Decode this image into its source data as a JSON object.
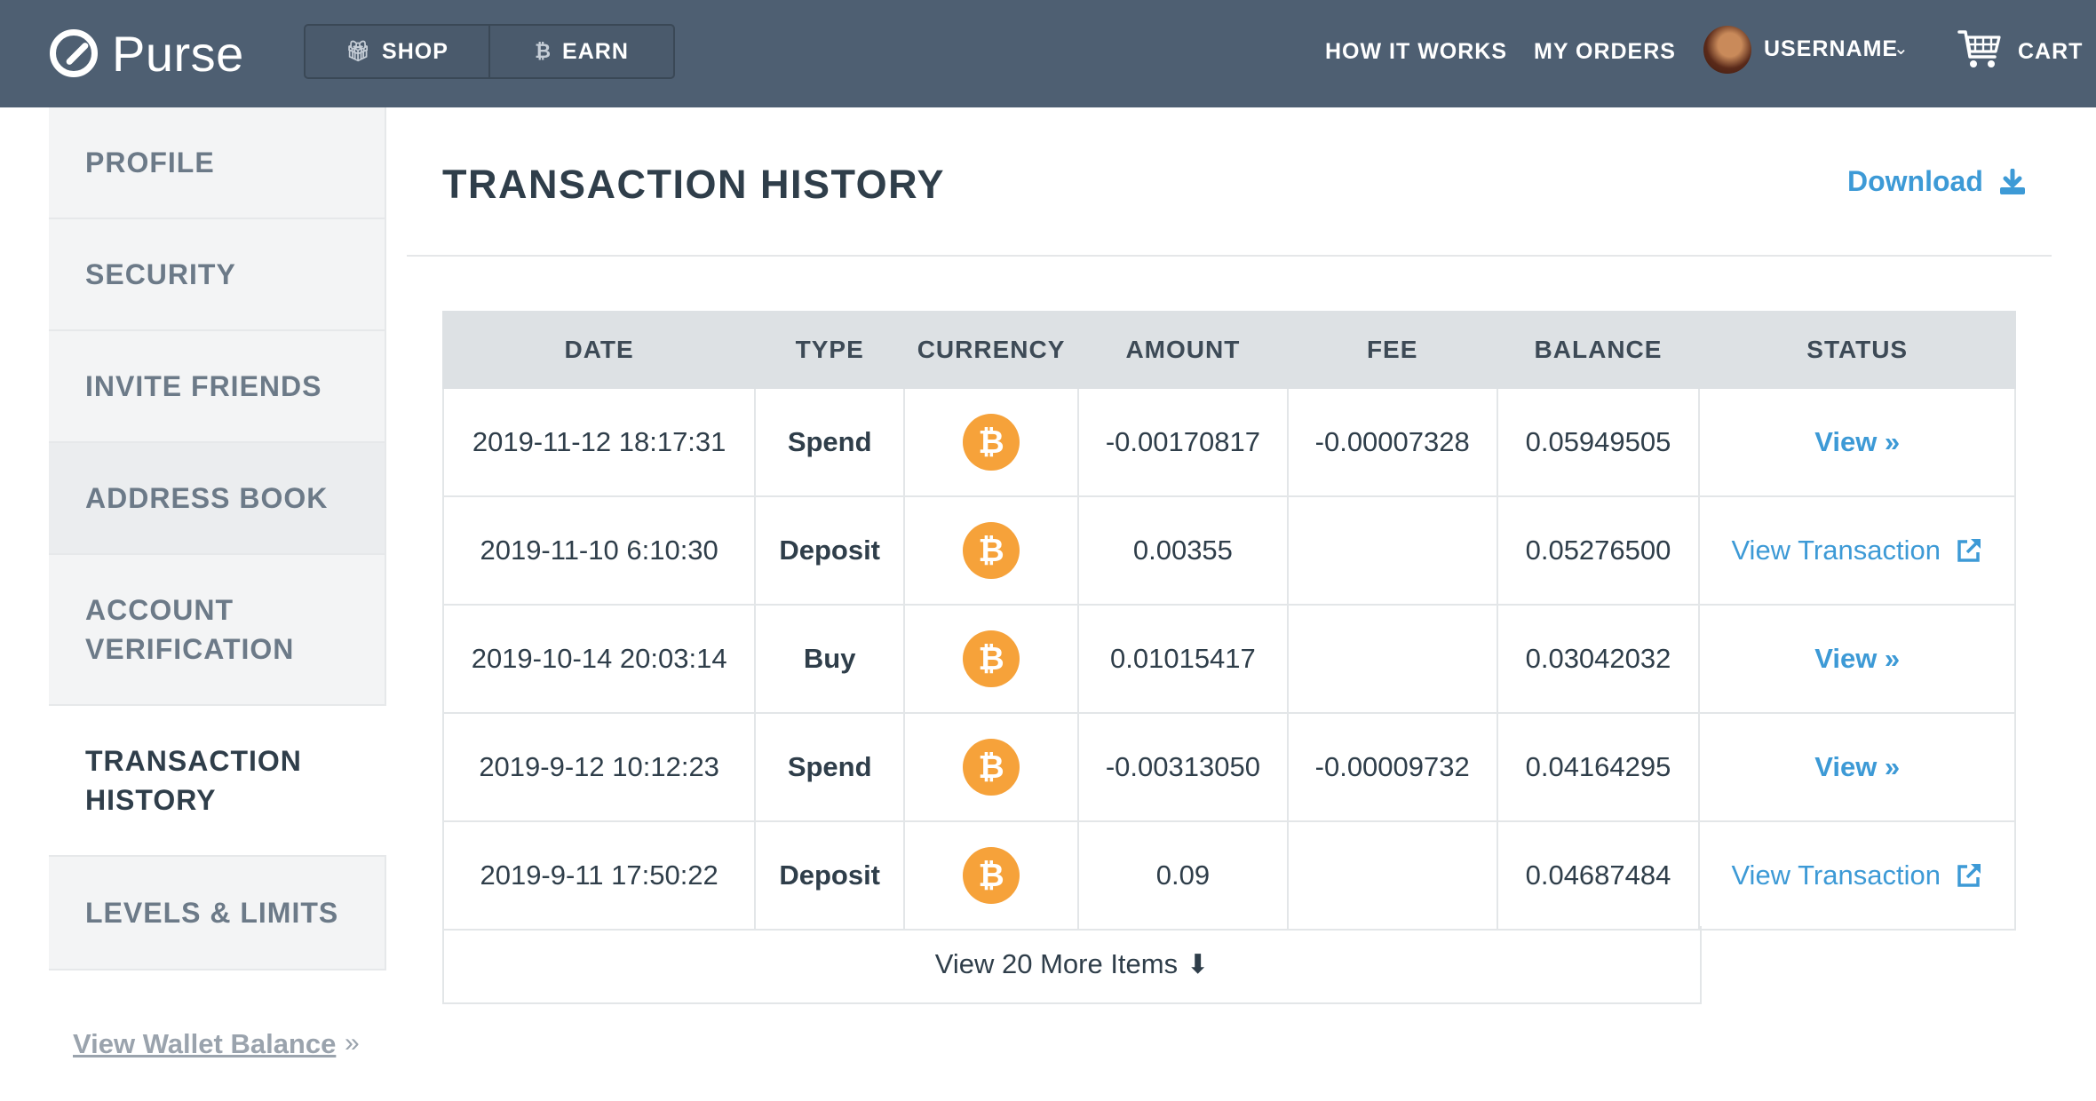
{
  "header": {
    "brand": "Purse",
    "segments": [
      {
        "label": "SHOP",
        "icon": "gift-icon"
      },
      {
        "label": "EARN",
        "icon": "bitcoin-icon"
      }
    ],
    "nav": {
      "how_it_works": "HOW IT WORKS",
      "my_orders": "MY ORDERS"
    },
    "user": {
      "name": "USERNAME"
    },
    "cart": {
      "label": "CART"
    }
  },
  "sidebar": {
    "items": [
      {
        "label": "PROFILE"
      },
      {
        "label": "SECURITY"
      },
      {
        "label": "INVITE FRIENDS"
      },
      {
        "label": "ADDRESS BOOK"
      },
      {
        "label": "ACCOUNT VERIFICATION"
      },
      {
        "label": "TRANSACTION HISTORY"
      },
      {
        "label": "LEVELS & LIMITS"
      }
    ],
    "wallet_link": "View Wallet Balance"
  },
  "main": {
    "title": "TRANSACTION HISTORY",
    "download": "Download",
    "columns": [
      "DATE",
      "TYPE",
      "CURRENCY",
      "AMOUNT",
      "FEE",
      "BALANCE",
      "STATUS"
    ],
    "rows": [
      {
        "date": "2019-11-12 18:17:31",
        "type": "Spend",
        "currency": "₿",
        "amount": "-0.00170817",
        "fee": "-0.00007328",
        "balance": "0.05949505",
        "status": "View »",
        "status_kind": "view"
      },
      {
        "date": "2019-11-10 6:10:30",
        "type": "Deposit",
        "currency": "₿",
        "amount": "0.00355",
        "fee": "",
        "balance": "0.05276500",
        "status": "View Transaction",
        "status_kind": "external"
      },
      {
        "date": "2019-10-14 20:03:14",
        "type": "Buy",
        "currency": "₿",
        "amount": "0.01015417",
        "fee": "",
        "balance": "0.03042032",
        "status": "View »",
        "status_kind": "view"
      },
      {
        "date": "2019-9-12 10:12:23",
        "type": "Spend",
        "currency": "₿",
        "amount": "-0.00313050",
        "fee": "-0.00009732",
        "balance": "0.04164295",
        "status": "View »",
        "status_kind": "view"
      },
      {
        "date": "2019-9-11 17:50:22",
        "type": "Deposit",
        "currency": "₿",
        "amount": "0.09",
        "fee": "",
        "balance": "0.04687484",
        "status": "View Transaction",
        "status_kind": "external"
      }
    ],
    "more": "View 20 More Items"
  },
  "colors": {
    "header_bg": "#4e5f72",
    "link_blue": "#3d9ad6",
    "bitcoin_orange": "#f6a23a"
  }
}
